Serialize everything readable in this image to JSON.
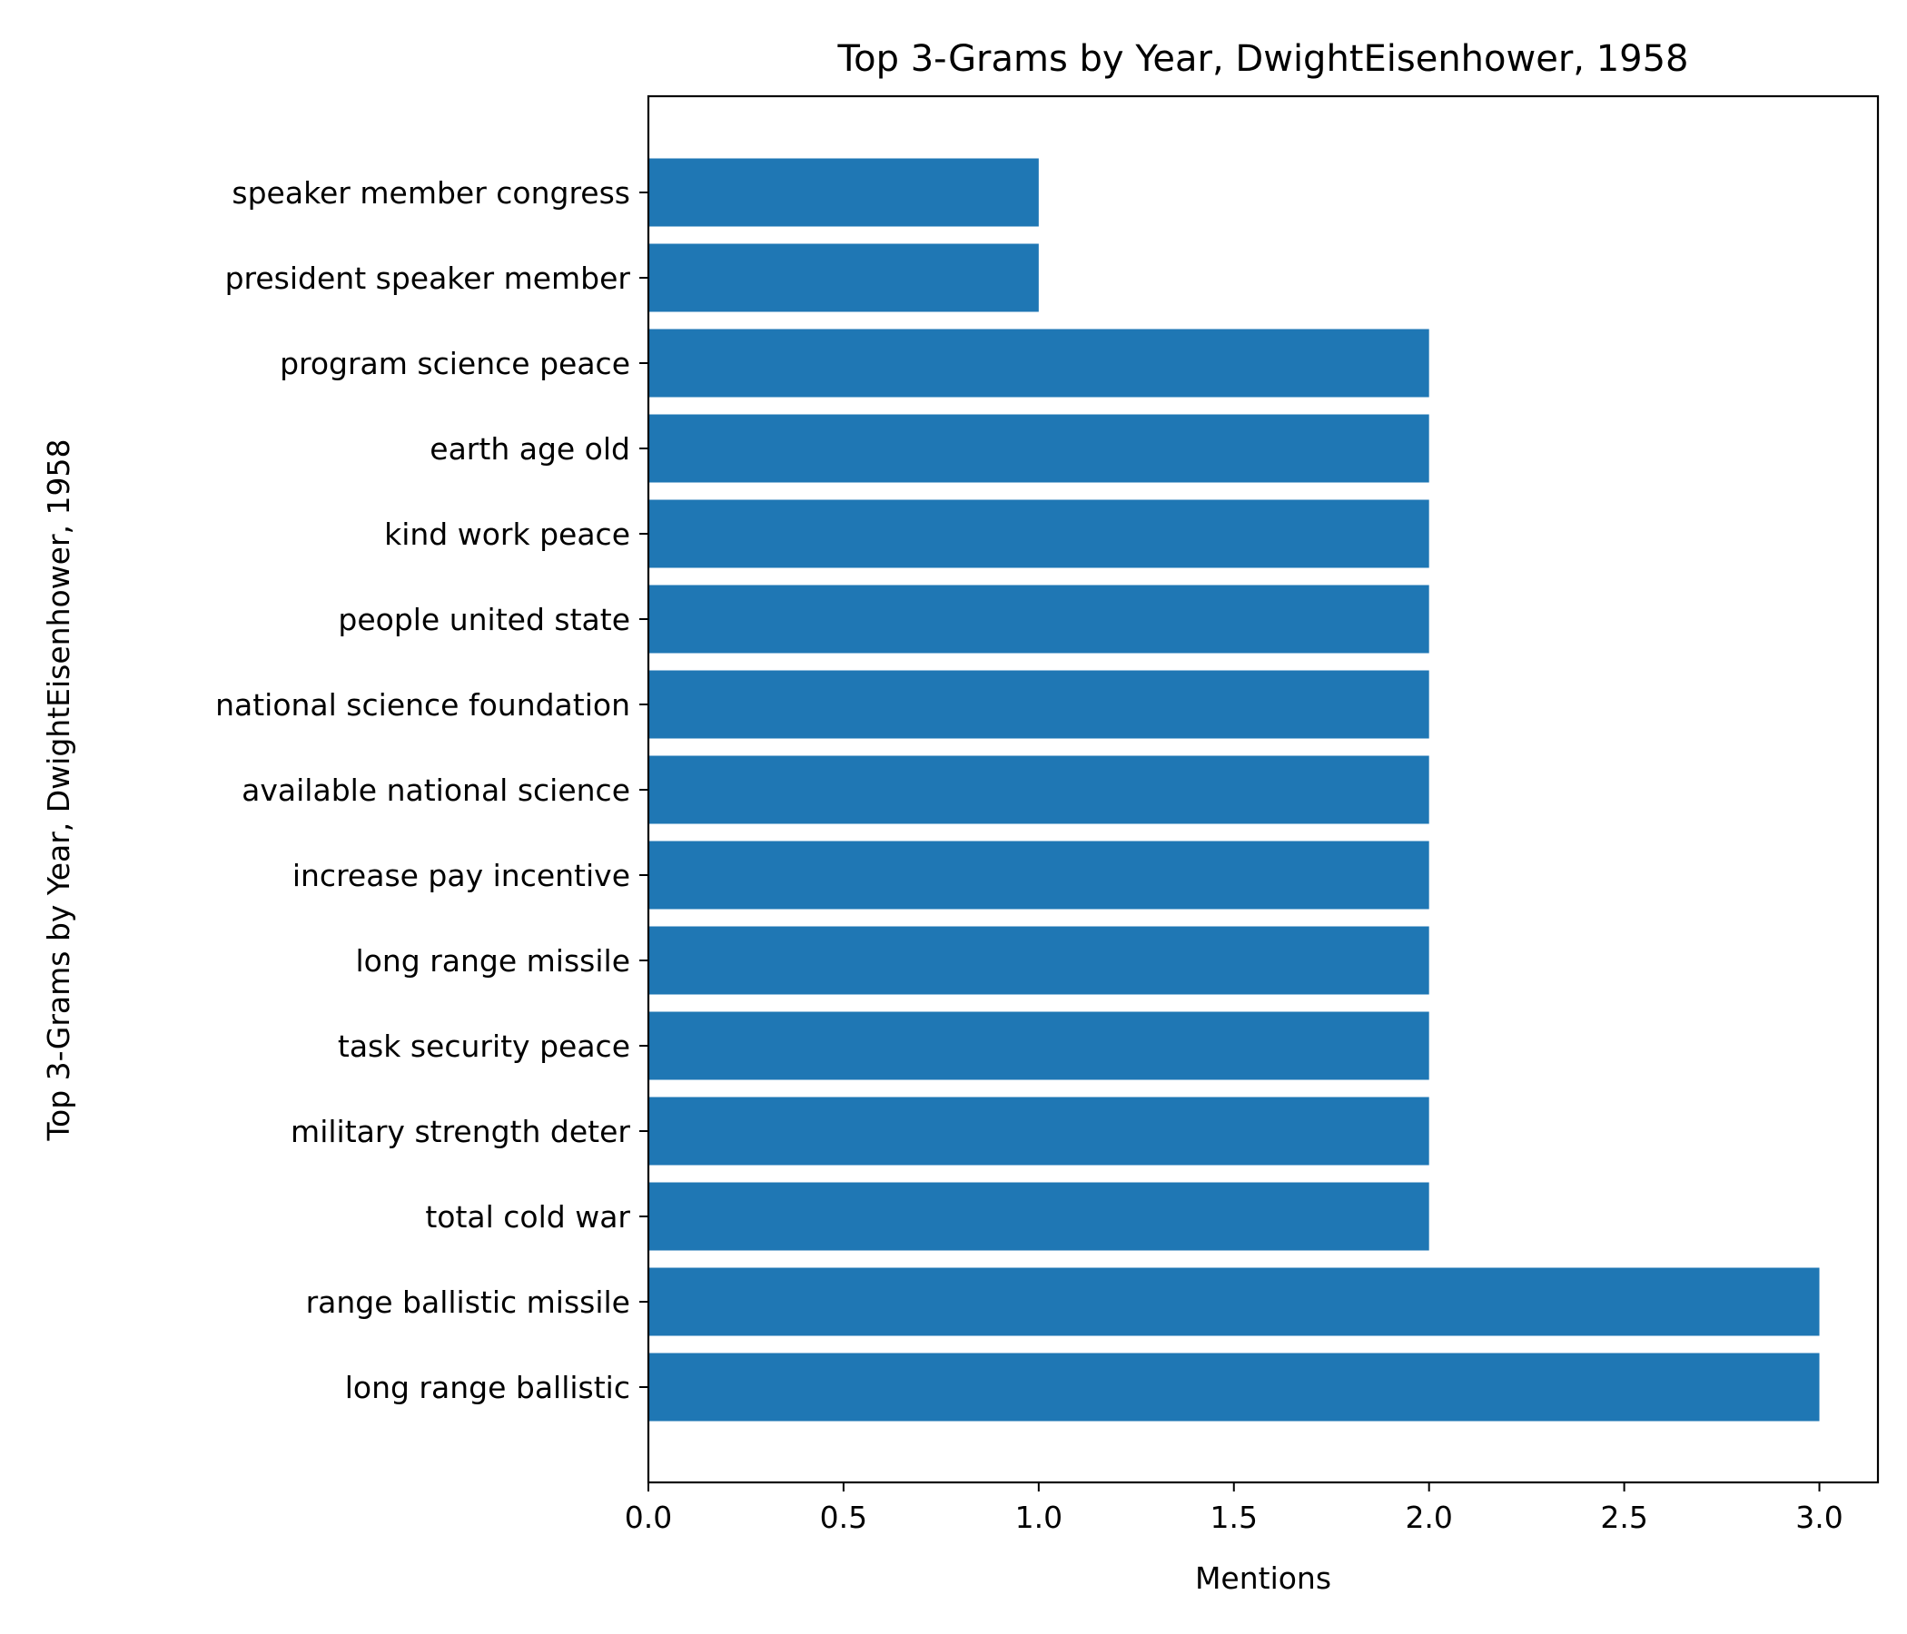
{
  "chart_data": {
    "type": "bar",
    "orientation": "horizontal",
    "title": "Top 3-Grams by Year, DwightEisenhower, 1958",
    "xlabel": "Mentions",
    "ylabel": "Top 3-Grams by Year, DwightEisenhower, 1958",
    "xlim": [
      0,
      3.15
    ],
    "xticks": [
      "0.0",
      "0.5",
      "1.0",
      "1.5",
      "2.0",
      "2.5",
      "3.0"
    ],
    "grid": false,
    "legend": "none",
    "bar_color": "#1f77b4",
    "categories": [
      "long range ballistic",
      "range ballistic missile",
      "total cold war",
      "military strength deter",
      "task security peace",
      "long range missile",
      "increase pay incentive",
      "available national science",
      "national science foundation",
      "people united state",
      "kind work peace",
      "earth age old",
      "program science peace",
      "president speaker member",
      "speaker member congress"
    ],
    "values": [
      3,
      3,
      2,
      2,
      2,
      2,
      2,
      2,
      2,
      2,
      2,
      2,
      2,
      1,
      1
    ]
  }
}
